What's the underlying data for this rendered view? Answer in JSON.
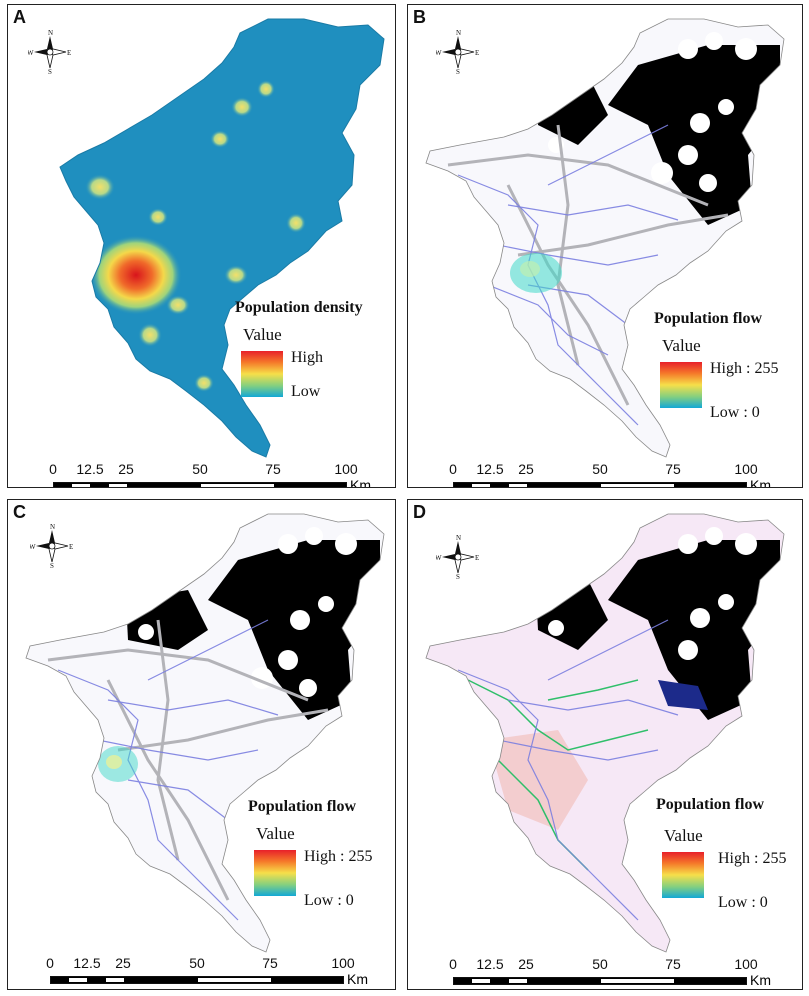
{
  "panels": [
    {
      "letter": "A",
      "legend_title": "Population density",
      "value_label": "Value",
      "high": "High",
      "low": "Low",
      "style": "density"
    },
    {
      "letter": "B",
      "legend_title": "Population flow",
      "value_label": "Value",
      "high": "High : 255",
      "low": "Low : 0",
      "style": "flow"
    },
    {
      "letter": "C",
      "legend_title": "Population flow",
      "value_label": "Value",
      "high": "High : 255",
      "low": "Low : 0",
      "style": "flow"
    },
    {
      "letter": "D",
      "legend_title": "Population flow",
      "value_label": "Value",
      "high": "High : 255",
      "low": "Low : 0",
      "style": "flow-pink"
    }
  ],
  "compass": {
    "n": "N",
    "s": "S",
    "e": "E",
    "w": "W"
  },
  "scalebar": {
    "ticks": [
      "0",
      "12.5",
      "25",
      "50",
      "75",
      "100"
    ],
    "unit": "Km"
  },
  "colors": {
    "density_base": "#1f8fbf",
    "ramp_high": "#e8202a",
    "ramp_mid": "#f6df4a",
    "ramp_low": "#12a8d6",
    "flow_lines": "#7b7fe0",
    "roads": "#b3b3b8",
    "excluded": "#000000",
    "pink_fill": "#f6e8f6"
  }
}
